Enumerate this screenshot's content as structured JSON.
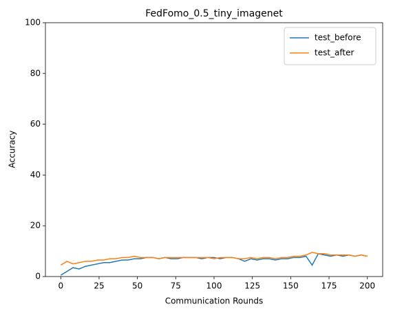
{
  "chart_data": {
    "type": "line",
    "title": "FedFomo_0.5_tiny_imagenet",
    "x_label": "Communication Rounds",
    "y_label": "Accuracy",
    "x": [
      0,
      4,
      8,
      12,
      16,
      20,
      24,
      28,
      32,
      36,
      40,
      44,
      48,
      52,
      56,
      60,
      64,
      68,
      72,
      76,
      80,
      84,
      88,
      92,
      96,
      100,
      104,
      108,
      112,
      116,
      120,
      124,
      128,
      132,
      136,
      140,
      144,
      148,
      152,
      156,
      160,
      164,
      168,
      172,
      176,
      180,
      184,
      188,
      192,
      196,
      200
    ],
    "series": [
      {
        "name": "test_before",
        "color": "#1f77b4",
        "values": [
          0.5,
          2,
          3.5,
          3,
          4,
          4.5,
          5,
          5.5,
          5.5,
          6,
          6.5,
          6.5,
          7,
          7,
          7.5,
          7.5,
          7,
          7.5,
          7,
          7,
          7.5,
          7.5,
          7.5,
          7,
          7.5,
          7.5,
          7,
          7.5,
          7.5,
          7,
          6,
          7,
          6.5,
          7,
          7,
          6.5,
          7,
          7,
          7.5,
          7.5,
          8,
          4.5,
          9,
          8.5,
          8,
          8.5,
          8,
          8.5,
          8,
          8.5,
          8
        ]
      },
      {
        "name": "test_after",
        "color": "#ff7f0e",
        "values": [
          4.5,
          6,
          5,
          5.5,
          6,
          6,
          6.5,
          6.5,
          7,
          7,
          7.5,
          7.5,
          8,
          7.5,
          7.5,
          7.5,
          7,
          7.5,
          7.5,
          7.5,
          7.5,
          7.5,
          7.5,
          7.5,
          7.5,
          7,
          7.5,
          7.5,
          7.5,
          7,
          7,
          7.5,
          7,
          7.5,
          7.5,
          7,
          7.5,
          7.5,
          8,
          8,
          8.5,
          9.5,
          9,
          9,
          8.5,
          8.5,
          8.5,
          8.5,
          8,
          8.5,
          8
        ]
      }
    ],
    "xlim": [
      -10,
      210
    ],
    "ylim": [
      0,
      100
    ],
    "xticks": [
      0,
      25,
      50,
      75,
      100,
      125,
      150,
      175,
      200
    ],
    "yticks": [
      0,
      20,
      40,
      60,
      80,
      100
    ],
    "grid": false,
    "legend": "upper right"
  }
}
